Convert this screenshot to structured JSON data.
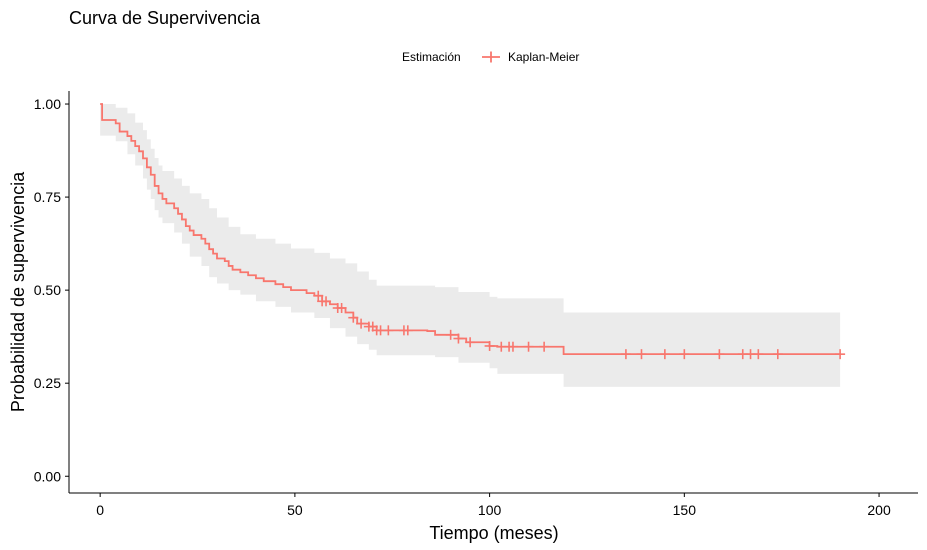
{
  "chart_data": {
    "type": "line",
    "title": "Curva de Supervivencia",
    "xlabel": "Tiempo (meses)",
    "ylabel": "Probabilidad de supervivencia",
    "xlim": [
      -8,
      210
    ],
    "ylim": [
      -0.045,
      1.035
    ],
    "x_ticks": [
      0,
      50,
      100,
      150,
      200
    ],
    "x_tick_labels": [
      "0",
      "50",
      "100",
      "150",
      "200"
    ],
    "y_ticks": [
      0,
      0.25,
      0.5,
      0.75,
      1
    ],
    "y_tick_labels": [
      "0.00",
      "0.25",
      "0.50",
      "0.75",
      "1.00"
    ],
    "grid": false,
    "legend": {
      "title": "Estimación",
      "position": "top",
      "entries": [
        "Kaplan-Meier"
      ]
    },
    "colors": {
      "line": "#F8766D",
      "ribbon": "#EBEBEB",
      "axis": "#000000"
    },
    "series": [
      {
        "name": "Kaplan-Meier",
        "steps": [
          [
            0,
            1.0
          ],
          [
            0.5,
            0.957
          ],
          [
            4,
            0.948
          ],
          [
            5,
            0.926
          ],
          [
            7,
            0.914
          ],
          [
            8,
            0.901
          ],
          [
            9,
            0.887
          ],
          [
            10,
            0.873
          ],
          [
            11,
            0.854
          ],
          [
            12,
            0.83
          ],
          [
            13,
            0.81
          ],
          [
            14,
            0.78
          ],
          [
            15,
            0.76
          ],
          [
            16,
            0.745
          ],
          [
            17,
            0.733
          ],
          [
            19,
            0.72
          ],
          [
            20,
            0.705
          ],
          [
            21,
            0.69
          ],
          [
            22,
            0.672
          ],
          [
            23,
            0.66
          ],
          [
            24,
            0.648
          ],
          [
            26,
            0.638
          ],
          [
            27,
            0.625
          ],
          [
            28,
            0.61
          ],
          [
            29,
            0.598
          ],
          [
            30,
            0.585
          ],
          [
            32,
            0.578
          ],
          [
            33,
            0.565
          ],
          [
            34,
            0.555
          ],
          [
            36,
            0.548
          ],
          [
            38,
            0.54
          ],
          [
            40,
            0.532
          ],
          [
            42,
            0.524
          ],
          [
            45,
            0.516
          ],
          [
            47,
            0.508
          ],
          [
            49,
            0.5
          ],
          [
            53,
            0.492
          ],
          [
            55,
            0.485
          ],
          [
            57,
            0.47
          ],
          [
            59,
            0.462
          ],
          [
            61,
            0.452
          ],
          [
            63,
            0.44
          ],
          [
            65,
            0.426
          ],
          [
            66,
            0.41
          ],
          [
            69,
            0.402
          ],
          [
            71,
            0.392
          ],
          [
            84,
            0.39
          ],
          [
            86,
            0.38
          ],
          [
            92,
            0.37
          ],
          [
            94,
            0.36
          ],
          [
            100,
            0.35
          ],
          [
            102,
            0.348
          ],
          [
            119,
            0.328
          ],
          [
            190,
            0.328
          ]
        ],
        "ci_lower": [
          [
            0,
            0.915
          ],
          [
            4,
            0.9
          ],
          [
            7,
            0.865
          ],
          [
            9,
            0.835
          ],
          [
            11,
            0.8
          ],
          [
            12,
            0.77
          ],
          [
            13,
            0.745
          ],
          [
            14,
            0.715
          ],
          [
            15,
            0.695
          ],
          [
            16,
            0.68
          ],
          [
            19,
            0.655
          ],
          [
            21,
            0.625
          ],
          [
            23,
            0.59
          ],
          [
            26,
            0.565
          ],
          [
            28,
            0.535
          ],
          [
            30,
            0.518
          ],
          [
            33,
            0.5
          ],
          [
            36,
            0.488
          ],
          [
            40,
            0.47
          ],
          [
            45,
            0.455
          ],
          [
            49,
            0.44
          ],
          [
            55,
            0.425
          ],
          [
            59,
            0.398
          ],
          [
            63,
            0.375
          ],
          [
            66,
            0.355
          ],
          [
            69,
            0.34
          ],
          [
            71,
            0.325
          ],
          [
            86,
            0.32
          ],
          [
            92,
            0.305
          ],
          [
            100,
            0.29
          ],
          [
            102,
            0.275
          ],
          [
            119,
            0.24
          ],
          [
            190,
            0.24
          ]
        ],
        "ci_upper": [
          [
            0,
            1.0
          ],
          [
            4,
            0.99
          ],
          [
            7,
            0.975
          ],
          [
            9,
            0.95
          ],
          [
            11,
            0.93
          ],
          [
            12,
            0.905
          ],
          [
            13,
            0.88
          ],
          [
            14,
            0.855
          ],
          [
            15,
            0.835
          ],
          [
            16,
            0.82
          ],
          [
            19,
            0.8
          ],
          [
            21,
            0.78
          ],
          [
            23,
            0.76
          ],
          [
            26,
            0.745
          ],
          [
            28,
            0.72
          ],
          [
            30,
            0.695
          ],
          [
            33,
            0.67
          ],
          [
            36,
            0.65
          ],
          [
            40,
            0.638
          ],
          [
            45,
            0.625
          ],
          [
            49,
            0.612
          ],
          [
            55,
            0.6
          ],
          [
            59,
            0.585
          ],
          [
            63,
            0.572
          ],
          [
            66,
            0.55
          ],
          [
            69,
            0.528
          ],
          [
            71,
            0.512
          ],
          [
            86,
            0.508
          ],
          [
            92,
            0.495
          ],
          [
            100,
            0.482
          ],
          [
            102,
            0.478
          ],
          [
            119,
            0.44
          ],
          [
            190,
            0.44
          ]
        ],
        "censored_times": [
          56,
          57,
          58,
          61,
          62,
          65,
          67,
          69,
          70,
          71,
          72,
          74,
          78,
          79,
          90,
          92,
          95,
          100,
          103,
          105,
          106,
          110,
          114,
          135,
          139,
          145,
          150,
          159,
          165,
          167,
          169,
          174,
          190
        ]
      }
    ]
  }
}
